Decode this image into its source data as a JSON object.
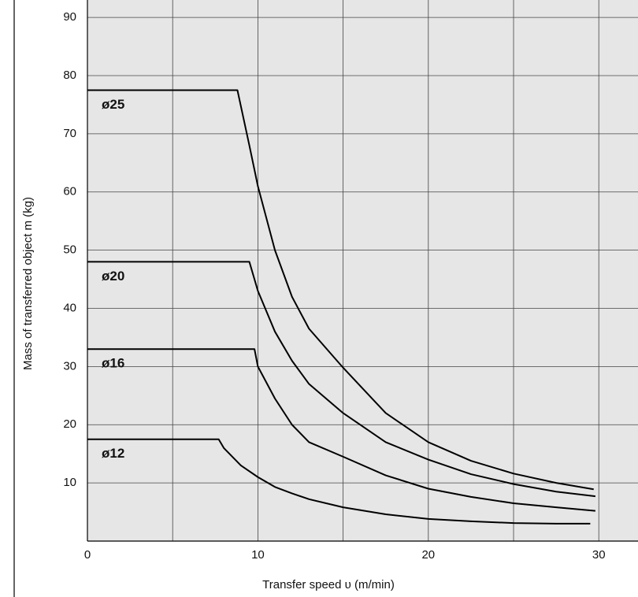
{
  "chart_data": {
    "type": "line",
    "x_label": "Transfer speed υ (m/min)",
    "y_label": "Mass of transferred object m (kg)",
    "xlim": [
      0,
      32.3
    ],
    "ylim": [
      0,
      93
    ],
    "xticks": [
      0,
      10,
      20,
      30
    ],
    "xgrid": [
      5,
      10,
      15,
      20,
      25,
      30
    ],
    "yticks": [
      10,
      20,
      30,
      40,
      50,
      60,
      70,
      80,
      90
    ],
    "grid": true,
    "series": [
      {
        "name": "ø25",
        "color": "#000000",
        "x": [
          0,
          8.8,
          9.5,
          10,
          11,
          12,
          13,
          15,
          17.5,
          20,
          22.5,
          25,
          27.5,
          29.7
        ],
        "values": [
          77.5,
          77.5,
          68,
          61,
          50,
          42,
          36.5,
          29.8,
          22,
          17,
          13.8,
          11.6,
          10,
          8.9
        ]
      },
      {
        "name": "ø20",
        "color": "#000000",
        "x": [
          0,
          9.5,
          10,
          11,
          12,
          13,
          15,
          17.5,
          20,
          22.5,
          25,
          27.5,
          29.8
        ],
        "values": [
          48,
          48,
          43,
          36,
          31,
          27,
          22,
          17,
          14,
          11.5,
          9.8,
          8.5,
          7.7
        ]
      },
      {
        "name": "ø16",
        "color": "#000000",
        "x": [
          0,
          9.8,
          10,
          11,
          12,
          13,
          15,
          17.5,
          20,
          22.5,
          25,
          27.5,
          29.8
        ],
        "values": [
          33,
          33,
          30,
          24.5,
          20,
          17,
          14.5,
          11.3,
          9,
          7.6,
          6.5,
          5.8,
          5.2
        ]
      },
      {
        "name": "ø12",
        "color": "#000000",
        "x": [
          0,
          7.7,
          8,
          9,
          10,
          11,
          12,
          13,
          15,
          17.5,
          20,
          22.5,
          25,
          27.5,
          29.5
        ],
        "values": [
          17.5,
          17.5,
          16,
          13,
          11,
          9.3,
          8.2,
          7.2,
          5.8,
          4.6,
          3.8,
          3.4,
          3.1,
          3.0,
          3.0
        ]
      }
    ]
  }
}
